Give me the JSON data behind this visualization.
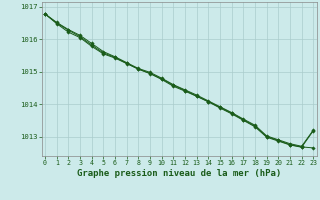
{
  "title": "Graphe pression niveau de la mer (hPa)",
  "background_color": "#cceaea",
  "grid_color": "#aacccc",
  "line_color": "#1a5c1a",
  "ylim": [
    1012.4,
    1017.15
  ],
  "xlim": [
    -0.3,
    23.3
  ],
  "yticks": [
    1013,
    1014,
    1015,
    1016,
    1017
  ],
  "xticks": [
    0,
    1,
    2,
    3,
    4,
    5,
    6,
    7,
    8,
    9,
    10,
    11,
    12,
    13,
    14,
    15,
    16,
    17,
    18,
    19,
    20,
    21,
    22,
    23
  ],
  "series": [
    [
      1016.78,
      1016.48,
      1016.22,
      1016.05,
      1015.78,
      1015.55,
      1015.42,
      1015.25,
      1015.08,
      1014.95,
      1014.78,
      1014.58,
      1014.42,
      1014.25,
      1014.08,
      1013.9,
      1013.72,
      1013.52,
      1013.32,
      1013.0,
      1012.88,
      1012.75,
      1012.68,
      1012.65
    ],
    [
      1016.78,
      1016.5,
      1016.28,
      1016.08,
      1015.82,
      1015.58,
      1015.44,
      1015.26,
      1015.08,
      1014.94,
      1014.76,
      1014.55,
      1014.4,
      1014.24,
      1014.07,
      1013.88,
      1013.7,
      1013.5,
      1013.3,
      1012.98,
      1012.86,
      1012.74,
      1012.67,
      1013.18
    ],
    [
      1016.78,
      1016.52,
      1016.3,
      1016.12,
      1015.87,
      1015.62,
      1015.46,
      1015.28,
      1015.1,
      1014.98,
      1014.8,
      1014.6,
      1014.44,
      1014.28,
      1014.1,
      1013.92,
      1013.74,
      1013.54,
      1013.35,
      1013.02,
      1012.9,
      1012.78,
      1012.7,
      1013.2
    ]
  ],
  "tick_fontsize": 5.5,
  "xlabel_fontsize": 6.5
}
